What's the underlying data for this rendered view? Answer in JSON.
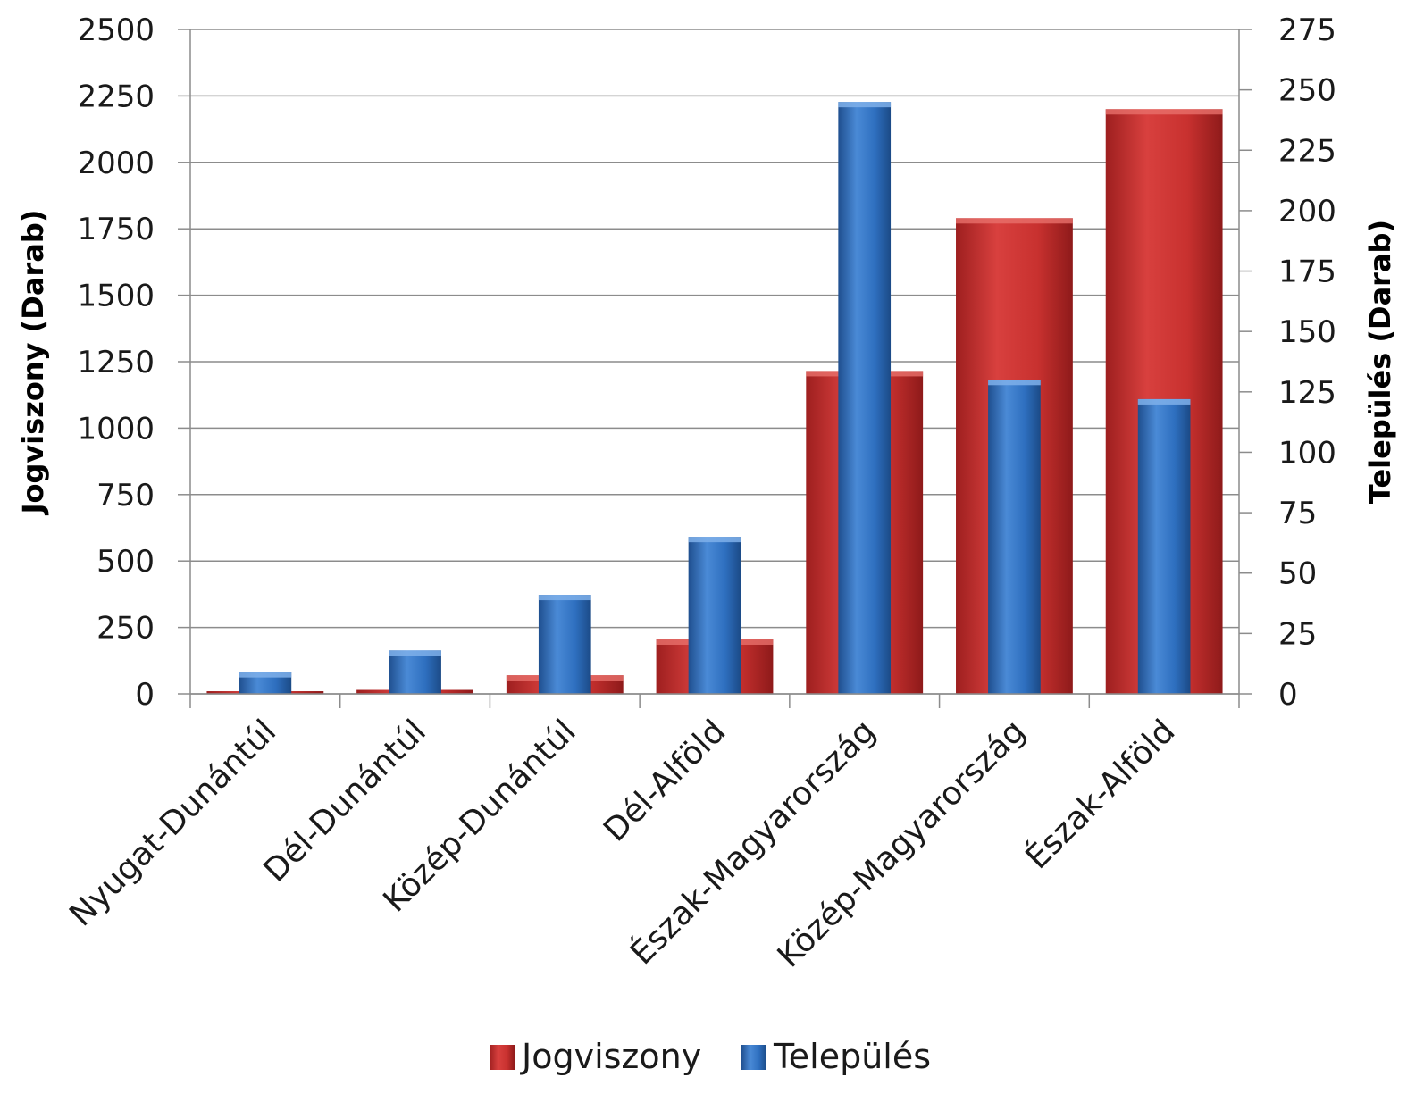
{
  "chart_data": {
    "type": "bar",
    "categories": [
      "Nyugat-Dunántúl",
      "Dél-Dunántúl",
      "Közép-Dunántúl",
      "Dél-Alföld",
      "Észak-Magyarország",
      "Közép-Magyarország",
      "Észak-Alföld"
    ],
    "series": [
      {
        "name": "Jogviszony",
        "axis": "left",
        "values": [
          10,
          15,
          70,
          205,
          1215,
          1790,
          2200
        ],
        "color": "#c8312f"
      },
      {
        "name": "Település",
        "axis": "right",
        "values": [
          9,
          18,
          41,
          65,
          245,
          130,
          122
        ],
        "color": "#2e6fbf"
      }
    ],
    "ylabel_left": "Jogviszony (Darab)",
    "ylabel_right": "Település (Darab)",
    "ylim_left": [
      0,
      2500
    ],
    "ylim_right": [
      0,
      275
    ],
    "yticks_left": [
      "0",
      "250",
      "500",
      "750",
      "1000",
      "1250",
      "1500",
      "1750",
      "2000",
      "2250",
      "2500"
    ],
    "yticks_right": [
      "0",
      "25",
      "50",
      "75",
      "100",
      "125",
      "150",
      "175",
      "200",
      "225",
      "250",
      "275"
    ],
    "grid": true,
    "legend_position": "bottom"
  }
}
